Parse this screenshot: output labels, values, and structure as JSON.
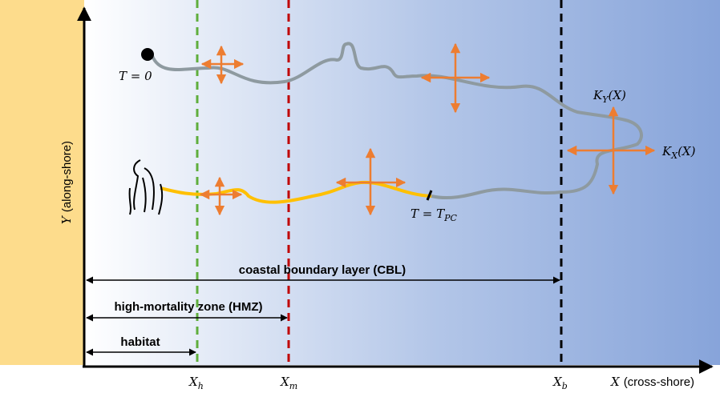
{
  "axes": {
    "y_label": {
      "symbol": "Y",
      "text": "(along-shore)"
    },
    "x_label": {
      "symbol": "X",
      "text": "(cross-shore)"
    }
  },
  "boundaries": [
    {
      "symbol": "X",
      "subscript": "h"
    },
    {
      "symbol": "X",
      "subscript": "m"
    },
    {
      "symbol": "X",
      "subscript": "b"
    }
  ],
  "annotations": {
    "start": "T = 0",
    "end": {
      "text": "T = T",
      "subscript": "PC"
    },
    "ky": {
      "symbol": "K",
      "subscript": "Y",
      "text": "(X)"
    },
    "kx": {
      "symbol": "K",
      "subscript": "X",
      "text": "(X)"
    }
  },
  "zones": [
    "coastal boundary layer (CBL)",
    "high-mortality zone (HMZ)",
    "habitat"
  ]
}
